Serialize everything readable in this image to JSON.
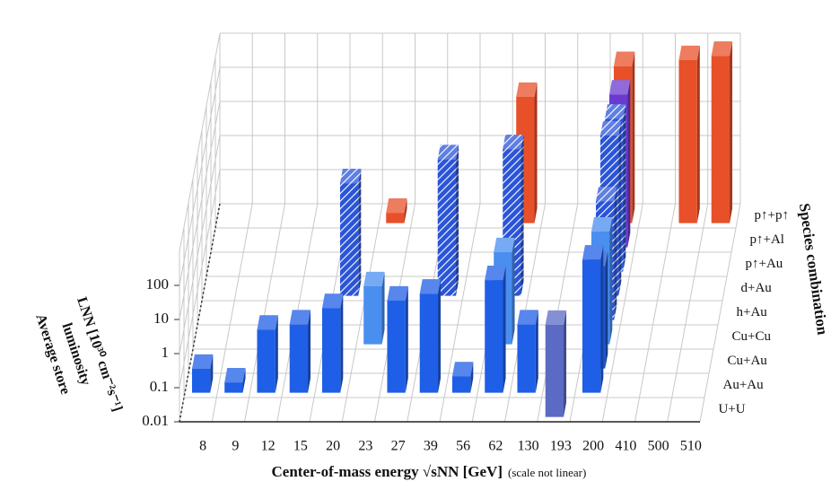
{
  "chart_data": {
    "type": "bar3d",
    "x_title": "Center-of-mass energy √sNN [GeV]",
    "x_note": "(scale not linear)",
    "y_title_lines": [
      "Average store",
      "luminosity",
      "LNN [10³⁰ cm⁻²s⁻¹]"
    ],
    "depth_title": "Species combination",
    "categories": [
      "8",
      "9",
      "12",
      "15",
      "20",
      "23",
      "27",
      "39",
      "56",
      "62",
      "130",
      "193",
      "200",
      "410",
      "500",
      "510"
    ],
    "ylim": [
      0.01,
      1000
    ],
    "yticks": [
      0.01,
      0.1,
      1,
      10,
      100
    ],
    "log_scale": true,
    "grid": true,
    "series": [
      {
        "name": "U+U",
        "color": "#5b6bc4",
        "hatched": false,
        "values": [
          null,
          null,
          null,
          null,
          null,
          null,
          null,
          null,
          null,
          null,
          null,
          5,
          null,
          null,
          null,
          null
        ]
      },
      {
        "name": "Au+Au",
        "color": "#1f5ee6",
        "hatched": false,
        "values": [
          0.05,
          0.02,
          0.7,
          1,
          3,
          null,
          5,
          8,
          0.03,
          20,
          1,
          null,
          80,
          null,
          null,
          null
        ]
      },
      {
        "name": "Cu+Au",
        "color": "#1d55cc",
        "hatched": false,
        "values": [
          null,
          null,
          null,
          null,
          null,
          null,
          null,
          null,
          null,
          null,
          null,
          null,
          10,
          null,
          null,
          null
        ]
      },
      {
        "name": "Cu+Cu",
        "color": "#4a8ef0",
        "hatched": false,
        "values": [
          null,
          null,
          null,
          null,
          null,
          0.5,
          null,
          null,
          null,
          5,
          null,
          null,
          20,
          null,
          null,
          null
        ]
      },
      {
        "name": "h+Au",
        "color": "#2b55d8",
        "hatched": true,
        "values": [
          null,
          null,
          null,
          null,
          null,
          null,
          null,
          null,
          null,
          null,
          null,
          null,
          30,
          null,
          null,
          null
        ]
      },
      {
        "name": "d+Au",
        "color": "#2b55d8",
        "hatched": true,
        "values": [
          null,
          null,
          null,
          null,
          20,
          null,
          null,
          100,
          null,
          200,
          null,
          null,
          500,
          null,
          null,
          null
        ]
      },
      {
        "name": "p↑+Au",
        "color": "#2b55d8",
        "hatched": true,
        "values": [
          null,
          null,
          null,
          null,
          null,
          null,
          null,
          null,
          null,
          null,
          null,
          null,
          300,
          null,
          null,
          null
        ]
      },
      {
        "name": "p↑+Al",
        "color": "#6a3ad0",
        "hatched": false,
        "values": [
          null,
          null,
          null,
          null,
          null,
          null,
          null,
          null,
          null,
          null,
          null,
          null,
          300,
          null,
          null,
          null
        ]
      },
      {
        "name": "p↑+p↑",
        "color": "#e8502a",
        "hatched": false,
        "values": [
          null,
          null,
          null,
          null,
          null,
          0.02,
          null,
          null,
          null,
          50,
          null,
          null,
          400,
          null,
          600,
          800
        ]
      }
    ]
  }
}
